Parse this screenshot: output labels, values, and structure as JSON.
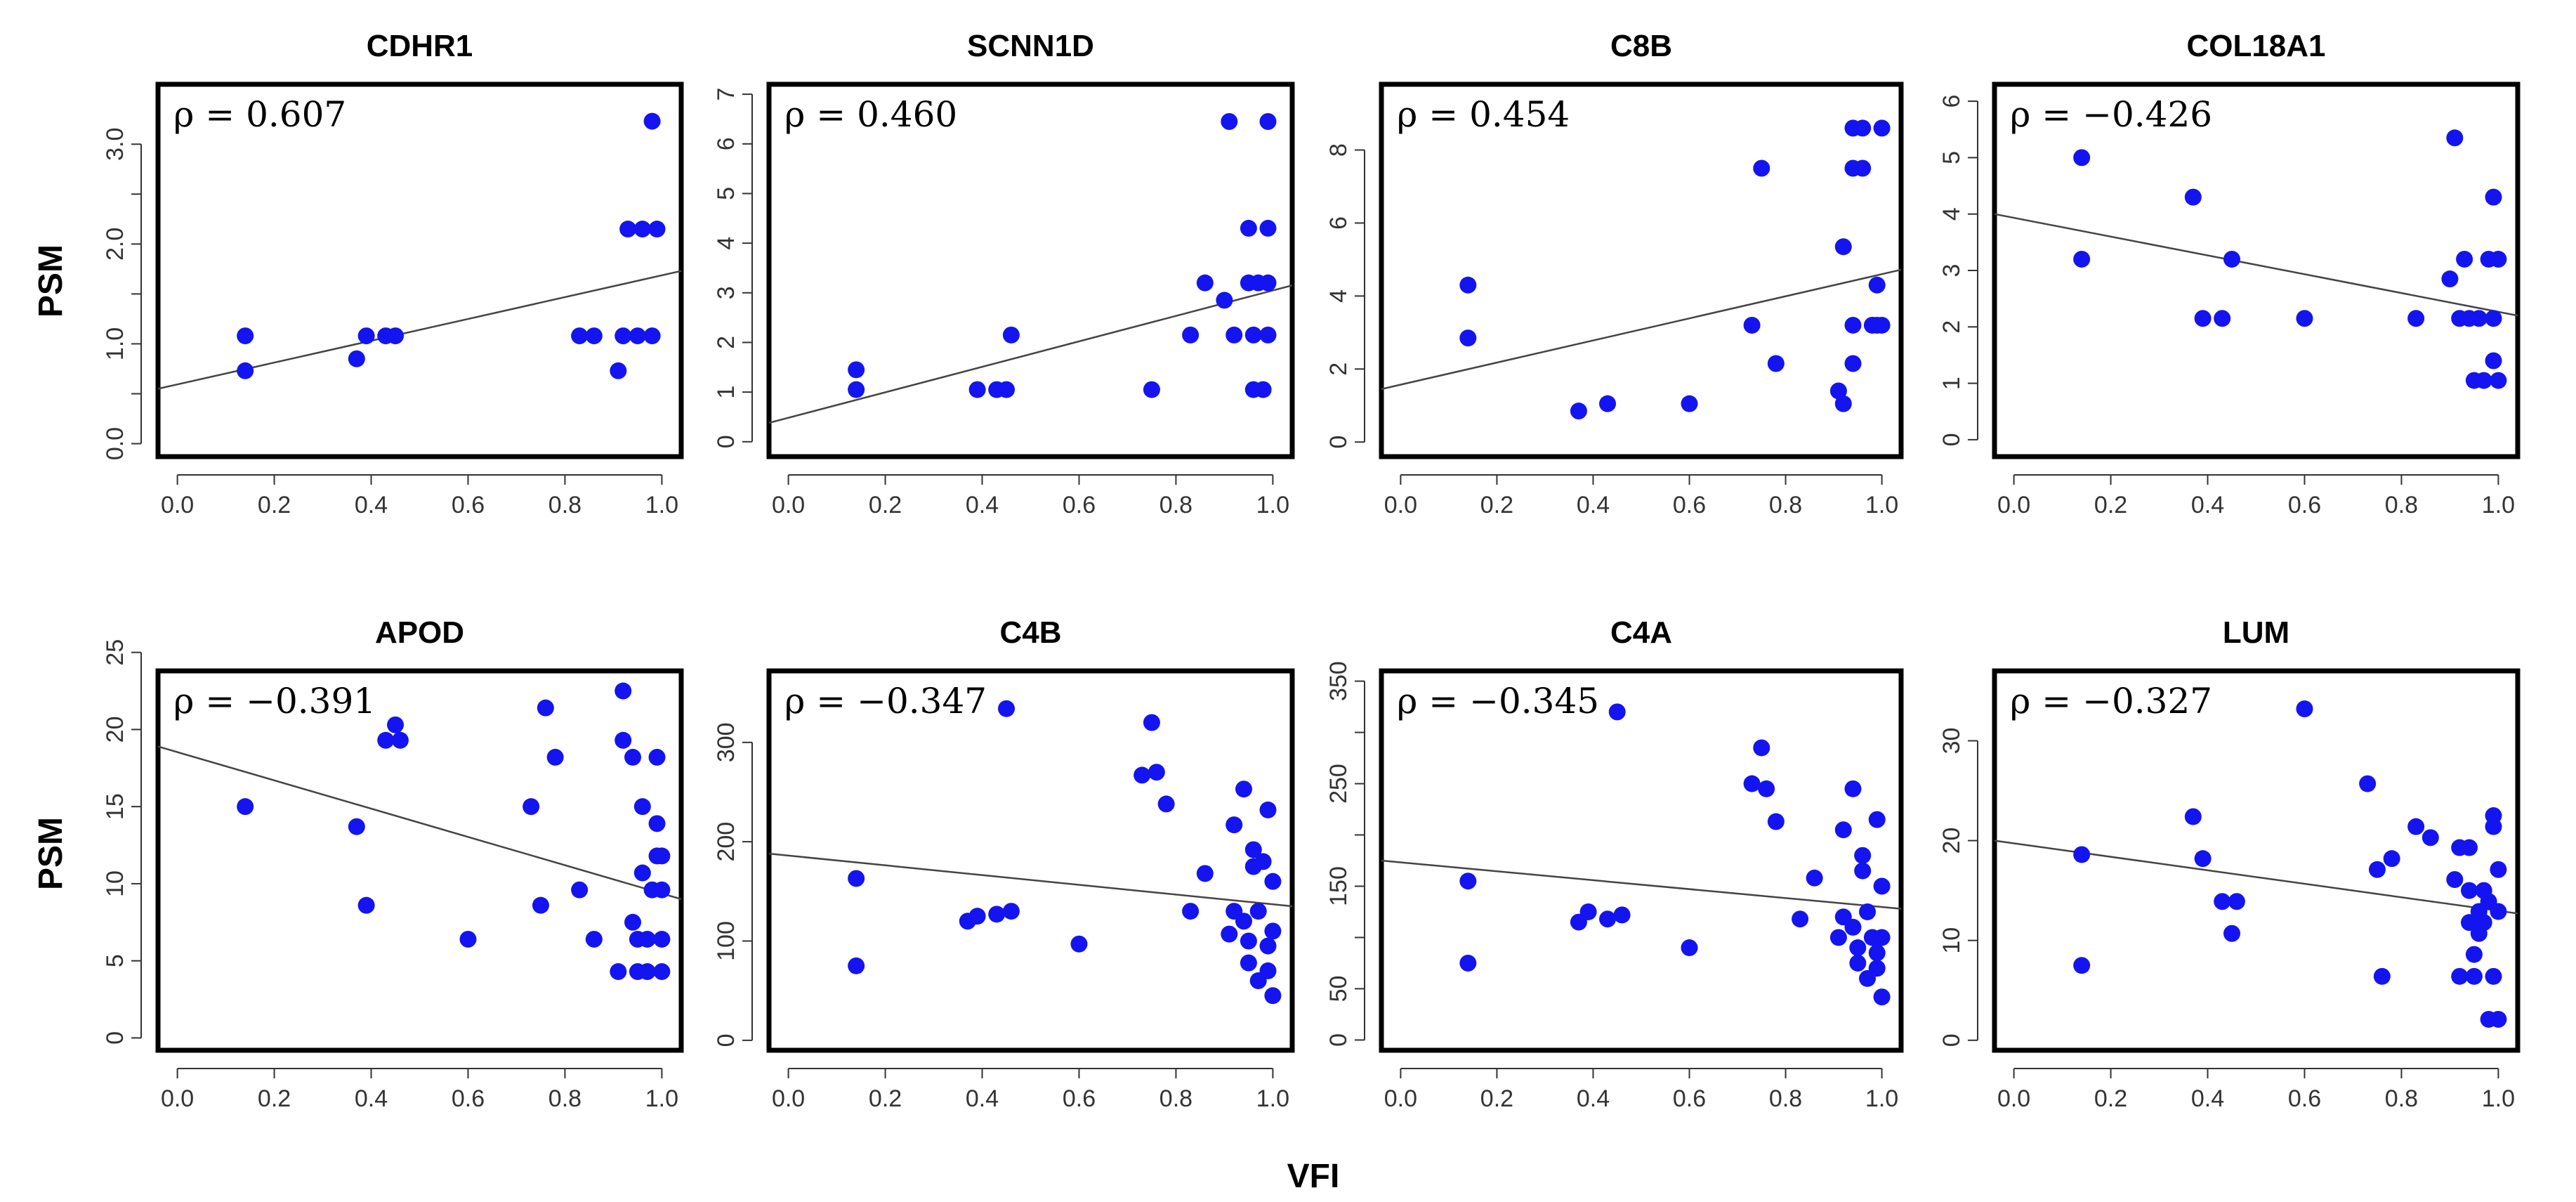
{
  "figure": {
    "ylabel": "PSM",
    "xlabel": "VFI",
    "point_color": "#1414F0",
    "line_color": "#444444",
    "frame_color": "#000000"
  },
  "chart_data": [
    {
      "type": "scatter",
      "title": "CDHR1",
      "rho_text": "ρ = 0.607",
      "xlabel": "VFI",
      "ylabel": "PSM",
      "xlim": [
        -0.04,
        1.04
      ],
      "ylim": [
        -0.13,
        3.6
      ],
      "x_ticks": [
        0.0,
        0.2,
        0.4,
        0.6,
        0.8,
        1.0
      ],
      "x_tick_labels": [
        "0.0",
        "0.2",
        "0.4",
        "0.6",
        "0.8",
        "1.0"
      ],
      "y_ticks": [
        0,
        0.5,
        1,
        1.5,
        2,
        2.5,
        3
      ],
      "y_tick_labels": [
        "0.0",
        "",
        "1.0",
        "",
        "2.0",
        "",
        "3.0"
      ],
      "fit": [
        [
          -0.04,
          0.55
        ],
        [
          1.04,
          1.73
        ]
      ],
      "points": [
        [
          0.14,
          1.08
        ],
        [
          0.14,
          0.73
        ],
        [
          0.37,
          0.85
        ],
        [
          0.39,
          1.08
        ],
        [
          0.43,
          1.08
        ],
        [
          0.45,
          1.08
        ],
        [
          0.83,
          1.08
        ],
        [
          0.86,
          1.08
        ],
        [
          0.91,
          0.73
        ],
        [
          0.92,
          1.08
        ],
        [
          0.93,
          2.15
        ],
        [
          0.95,
          1.08
        ],
        [
          0.96,
          2.15
        ],
        [
          0.98,
          1.08
        ],
        [
          0.99,
          2.15
        ],
        [
          0.98,
          3.23
        ]
      ]
    },
    {
      "type": "scatter",
      "title": "SCNN1D",
      "rho_text": "ρ = 0.460",
      "xlabel": "VFI",
      "ylabel": "PSM",
      "xlim": [
        -0.04,
        1.04
      ],
      "ylim": [
        -0.3,
        7.2
      ],
      "x_ticks": [
        0.0,
        0.2,
        0.4,
        0.6,
        0.8,
        1.0
      ],
      "x_tick_labels": [
        "0.0",
        "0.2",
        "0.4",
        "0.6",
        "0.8",
        "1.0"
      ],
      "y_ticks": [
        0,
        1,
        2,
        3,
        4,
        5,
        6,
        7
      ],
      "y_tick_labels": [
        "0",
        "1",
        "2",
        "3",
        "4",
        "5",
        "6",
        "7"
      ],
      "fit": [
        [
          -0.04,
          0.38
        ],
        [
          1.04,
          3.15
        ]
      ],
      "points": [
        [
          0.14,
          1.45
        ],
        [
          0.14,
          1.05
        ],
        [
          0.39,
          1.05
        ],
        [
          0.43,
          1.05
        ],
        [
          0.45,
          1.05
        ],
        [
          0.46,
          2.15
        ],
        [
          0.75,
          1.05
        ],
        [
          0.83,
          2.15
        ],
        [
          0.86,
          3.2
        ],
        [
          0.9,
          2.85
        ],
        [
          0.92,
          2.15
        ],
        [
          0.91,
          6.45
        ],
        [
          0.95,
          4.3
        ],
        [
          0.95,
          3.2
        ],
        [
          0.96,
          1.05
        ],
        [
          0.96,
          2.15
        ],
        [
          0.97,
          3.2
        ],
        [
          0.98,
          1.05
        ],
        [
          0.99,
          2.15
        ],
        [
          0.99,
          3.2
        ],
        [
          0.99,
          4.3
        ],
        [
          0.99,
          6.45
        ]
      ]
    },
    {
      "type": "scatter",
      "title": "C8B",
      "rho_text": "ρ = 0.454",
      "xlabel": "VFI",
      "ylabel": "PSM",
      "xlim": [
        -0.04,
        1.04
      ],
      "ylim": [
        -0.4,
        9.8
      ],
      "x_ticks": [
        0.0,
        0.2,
        0.4,
        0.6,
        0.8,
        1.0
      ],
      "x_tick_labels": [
        "0.0",
        "0.2",
        "0.4",
        "0.6",
        "0.8",
        "1.0"
      ],
      "y_ticks": [
        0,
        2,
        4,
        6,
        8
      ],
      "y_tick_labels": [
        "0",
        "2",
        "4",
        "6",
        "8"
      ],
      "fit": [
        [
          -0.04,
          1.45
        ],
        [
          1.04,
          4.72
        ]
      ],
      "points": [
        [
          0.14,
          4.3
        ],
        [
          0.14,
          2.85
        ],
        [
          0.37,
          0.85
        ],
        [
          0.43,
          1.05
        ],
        [
          0.6,
          1.05
        ],
        [
          0.73,
          3.2
        ],
        [
          0.75,
          7.5
        ],
        [
          0.78,
          2.15
        ],
        [
          0.91,
          1.4
        ],
        [
          0.92,
          1.05
        ],
        [
          0.92,
          5.35
        ],
        [
          0.94,
          2.15
        ],
        [
          0.94,
          3.2
        ],
        [
          0.94,
          7.5
        ],
        [
          0.94,
          8.6
        ],
        [
          0.96,
          7.5
        ],
        [
          0.96,
          8.6
        ],
        [
          0.98,
          3.2
        ],
        [
          0.99,
          4.3
        ],
        [
          0.99,
          3.2
        ],
        [
          1.0,
          3.2
        ],
        [
          1.0,
          8.6
        ]
      ]
    },
    {
      "type": "scatter",
      "title": "COL18A1",
      "rho_text": "ρ = −0.426",
      "xlabel": "VFI",
      "ylabel": "PSM",
      "xlim": [
        -0.04,
        1.04
      ],
      "ylim": [
        -0.3,
        6.3
      ],
      "x_ticks": [
        0.0,
        0.2,
        0.4,
        0.6,
        0.8,
        1.0
      ],
      "x_tick_labels": [
        "0.0",
        "0.2",
        "0.4",
        "0.6",
        "0.8",
        "1.0"
      ],
      "y_ticks": [
        0,
        1,
        2,
        3,
        4,
        5,
        6
      ],
      "y_tick_labels": [
        "0",
        "1",
        "2",
        "3",
        "4",
        "5",
        "6"
      ],
      "fit": [
        [
          -0.04,
          4.0
        ],
        [
          1.04,
          2.2
        ]
      ],
      "points": [
        [
          0.14,
          5.0
        ],
        [
          0.14,
          3.2
        ],
        [
          0.37,
          4.3
        ],
        [
          0.39,
          2.15
        ],
        [
          0.43,
          2.15
        ],
        [
          0.45,
          3.2
        ],
        [
          0.6,
          2.15
        ],
        [
          0.83,
          2.15
        ],
        [
          0.91,
          5.35
        ],
        [
          0.9,
          2.85
        ],
        [
          0.92,
          2.15
        ],
        [
          0.93,
          3.2
        ],
        [
          0.94,
          2.15
        ],
        [
          0.95,
          1.05
        ],
        [
          0.96,
          2.15
        ],
        [
          0.97,
          1.05
        ],
        [
          0.98,
          3.2
        ],
        [
          0.99,
          2.15
        ],
        [
          0.99,
          4.3
        ],
        [
          0.99,
          1.4
        ],
        [
          1.0,
          3.2
        ],
        [
          1.0,
          1.05
        ]
      ]
    },
    {
      "type": "scatter",
      "title": "APOD",
      "rho_text": "ρ = −0.391",
      "xlabel": "VFI",
      "ylabel": "PSM",
      "xlim": [
        -0.04,
        1.04
      ],
      "ylim": [
        -0.8,
        23.8
      ],
      "x_ticks": [
        0.0,
        0.2,
        0.4,
        0.6,
        0.8,
        1.0
      ],
      "x_tick_labels": [
        "0.0",
        "0.2",
        "0.4",
        "0.6",
        "0.8",
        "1.0"
      ],
      "y_ticks": [
        0,
        5,
        10,
        15,
        20,
        25
      ],
      "y_tick_labels": [
        "0",
        "5",
        "10",
        "15",
        "20",
        "25"
      ],
      "fit": [
        [
          -0.04,
          18.9
        ],
        [
          1.04,
          9.0
        ]
      ],
      "points": [
        [
          0.14,
          15.0
        ],
        [
          0.37,
          13.7
        ],
        [
          0.39,
          8.6
        ],
        [
          0.43,
          19.3
        ],
        [
          0.45,
          20.3
        ],
        [
          0.46,
          19.3
        ],
        [
          0.6,
          6.4
        ],
        [
          0.73,
          15.0
        ],
        [
          0.75,
          8.6
        ],
        [
          0.76,
          21.4
        ],
        [
          0.78,
          18.2
        ],
        [
          0.83,
          9.6
        ],
        [
          0.86,
          6.4
        ],
        [
          0.91,
          4.3
        ],
        [
          0.92,
          22.5
        ],
        [
          0.92,
          19.3
        ],
        [
          0.94,
          18.2
        ],
        [
          0.94,
          7.5
        ],
        [
          0.95,
          6.4
        ],
        [
          0.95,
          4.3
        ],
        [
          0.96,
          15.0
        ],
        [
          0.96,
          10.7
        ],
        [
          0.97,
          6.4
        ],
        [
          0.97,
          4.3
        ],
        [
          0.98,
          9.6
        ],
        [
          0.99,
          18.2
        ],
        [
          0.99,
          13.9
        ],
        [
          0.99,
          11.8
        ],
        [
          1.0,
          9.6
        ],
        [
          1.0,
          6.4
        ],
        [
          1.0,
          4.3
        ],
        [
          1.0,
          11.8
        ]
      ]
    },
    {
      "type": "scatter",
      "title": "C4B",
      "rho_text": "ρ = −0.347",
      "xlabel": "VFI",
      "ylabel": "PSM",
      "xlim": [
        -0.04,
        1.04
      ],
      "ylim": [
        -10,
        372
      ],
      "x_ticks": [
        0.0,
        0.2,
        0.4,
        0.6,
        0.8,
        1.0
      ],
      "x_tick_labels": [
        "0.0",
        "0.2",
        "0.4",
        "0.6",
        "0.8",
        "1.0"
      ],
      "y_ticks": [
        0,
        100,
        200,
        300
      ],
      "y_tick_labels": [
        "0",
        "100",
        "200",
        "300"
      ],
      "fit": [
        [
          -0.04,
          188
        ],
        [
          1.04,
          135
        ]
      ],
      "points": [
        [
          0.14,
          163
        ],
        [
          0.14,
          75
        ],
        [
          0.37,
          120
        ],
        [
          0.39,
          125
        ],
        [
          0.43,
          127
        ],
        [
          0.45,
          334
        ],
        [
          0.46,
          130
        ],
        [
          0.6,
          97
        ],
        [
          0.73,
          267
        ],
        [
          0.75,
          320
        ],
        [
          0.76,
          270
        ],
        [
          0.78,
          238
        ],
        [
          0.83,
          130
        ],
        [
          0.86,
          168
        ],
        [
          0.91,
          107
        ],
        [
          0.92,
          217
        ],
        [
          0.92,
          130
        ],
        [
          0.94,
          253
        ],
        [
          0.94,
          120
        ],
        [
          0.95,
          100
        ],
        [
          0.95,
          78
        ],
        [
          0.96,
          192
        ],
        [
          0.96,
          175
        ],
        [
          0.97,
          60
        ],
        [
          0.97,
          130
        ],
        [
          0.98,
          180
        ],
        [
          0.99,
          232
        ],
        [
          0.99,
          95
        ],
        [
          0.99,
          70
        ],
        [
          1.0,
          110
        ],
        [
          1.0,
          45
        ],
        [
          1.0,
          160
        ]
      ]
    },
    {
      "type": "scatter",
      "title": "C4A",
      "rho_text": "ρ = −0.345",
      "xlabel": "VFI",
      "ylabel": "PSM",
      "xlim": [
        -0.04,
        1.04
      ],
      "ylim": [
        -10,
        360
      ],
      "x_ticks": [
        0.0,
        0.2,
        0.4,
        0.6,
        0.8,
        1.0
      ],
      "x_tick_labels": [
        "0.0",
        "0.2",
        "0.4",
        "0.6",
        "0.8",
        "1.0"
      ],
      "y_ticks": [
        0,
        50,
        100,
        150,
        200,
        250,
        300,
        350
      ],
      "y_tick_labels": [
        "0",
        "50",
        "",
        "150",
        "",
        "250",
        "",
        "350"
      ],
      "fit": [
        [
          -0.04,
          175
        ],
        [
          1.04,
          128
        ]
      ],
      "points": [
        [
          0.14,
          155
        ],
        [
          0.14,
          75
        ],
        [
          0.37,
          115
        ],
        [
          0.39,
          125
        ],
        [
          0.43,
          118
        ],
        [
          0.45,
          320
        ],
        [
          0.46,
          122
        ],
        [
          0.6,
          90
        ],
        [
          0.73,
          250
        ],
        [
          0.75,
          285
        ],
        [
          0.76,
          245
        ],
        [
          0.78,
          213
        ],
        [
          0.83,
          118
        ],
        [
          0.86,
          158
        ],
        [
          0.91,
          100
        ],
        [
          0.92,
          205
        ],
        [
          0.92,
          120
        ],
        [
          0.94,
          245
        ],
        [
          0.94,
          110
        ],
        [
          0.95,
          90
        ],
        [
          0.95,
          75
        ],
        [
          0.96,
          180
        ],
        [
          0.96,
          165
        ],
        [
          0.97,
          60
        ],
        [
          0.97,
          125
        ],
        [
          0.98,
          100
        ],
        [
          0.99,
          215
        ],
        [
          0.99,
          85
        ],
        [
          0.99,
          70
        ],
        [
          1.0,
          100
        ],
        [
          1.0,
          42
        ],
        [
          1.0,
          150
        ]
      ]
    },
    {
      "type": "scatter",
      "title": "LUM",
      "rho_text": "ρ = −0.327",
      "xlabel": "VFI",
      "ylabel": "PSM",
      "xlim": [
        -0.04,
        1.04
      ],
      "ylim": [
        -1,
        37
      ],
      "x_ticks": [
        0.0,
        0.2,
        0.4,
        0.6,
        0.8,
        1.0
      ],
      "x_tick_labels": [
        "0.0",
        "0.2",
        "0.4",
        "0.6",
        "0.8",
        "1.0"
      ],
      "y_ticks": [
        0,
        10,
        20,
        30
      ],
      "y_tick_labels": [
        "0",
        "10",
        "20",
        "30"
      ],
      "fit": [
        [
          -0.04,
          20.0
        ],
        [
          1.04,
          12.7
        ]
      ],
      "points": [
        [
          0.14,
          18.6
        ],
        [
          0.14,
          7.5
        ],
        [
          0.37,
          22.4
        ],
        [
          0.39,
          18.2
        ],
        [
          0.43,
          13.9
        ],
        [
          0.45,
          10.7
        ],
        [
          0.46,
          13.9
        ],
        [
          0.6,
          33.2
        ],
        [
          0.73,
          25.7
        ],
        [
          0.75,
          17.1
        ],
        [
          0.76,
          6.4
        ],
        [
          0.78,
          18.2
        ],
        [
          0.83,
          21.4
        ],
        [
          0.86,
          20.3
        ],
        [
          0.91,
          16.1
        ],
        [
          0.92,
          19.3
        ],
        [
          0.92,
          6.4
        ],
        [
          0.94,
          19.3
        ],
        [
          0.94,
          15.0
        ],
        [
          0.94,
          11.8
        ],
        [
          0.95,
          8.6
        ],
        [
          0.95,
          6.4
        ],
        [
          0.96,
          12.9
        ],
        [
          0.96,
          10.7
        ],
        [
          0.97,
          15.0
        ],
        [
          0.97,
          11.8
        ],
        [
          0.98,
          2.1
        ],
        [
          0.98,
          13.9
        ],
        [
          0.99,
          21.4
        ],
        [
          0.99,
          22.5
        ],
        [
          0.99,
          6.4
        ],
        [
          1.0,
          12.9
        ],
        [
          1.0,
          17.1
        ],
        [
          1.0,
          2.1
        ]
      ]
    }
  ]
}
